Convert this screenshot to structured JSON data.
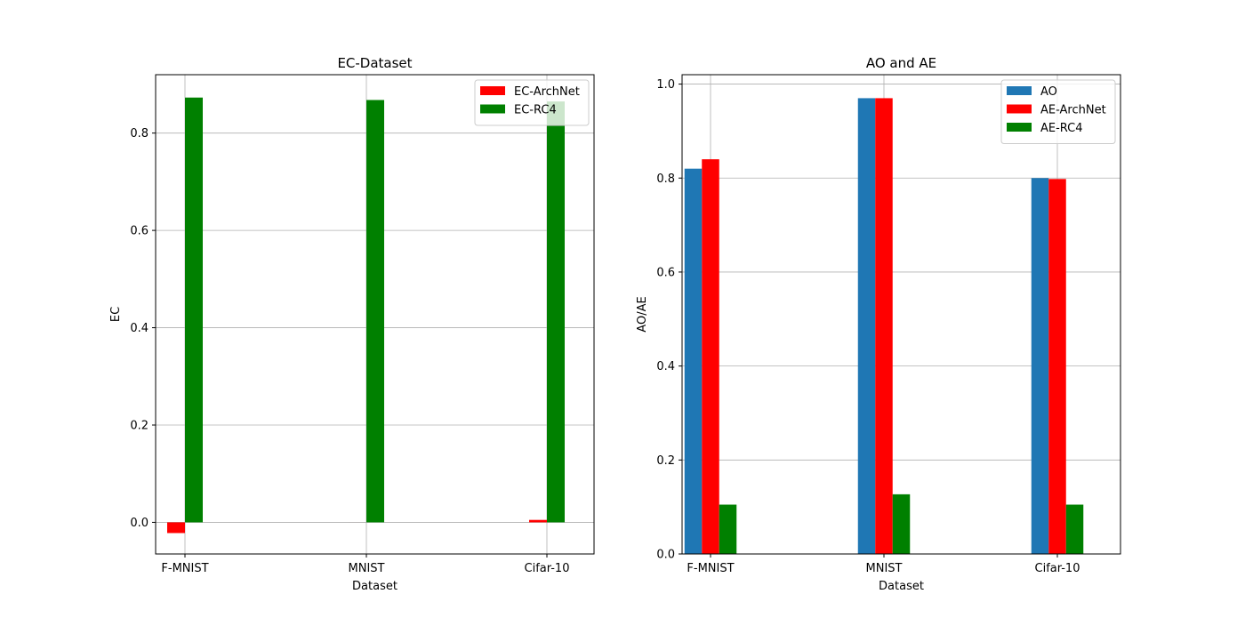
{
  "chart_data": [
    {
      "type": "bar",
      "title": "EC-Dataset",
      "xlabel": "Dataset",
      "ylabel": "EC",
      "categories": [
        "F-MNIST",
        "MNIST",
        "Cifar-10"
      ],
      "ylim": [
        -0.065,
        0.92
      ],
      "yticks": [
        "0.0",
        "0.2",
        "0.4",
        "0.6",
        "0.8"
      ],
      "grid": true,
      "legend_position": "upper right",
      "series": [
        {
          "name": "EC-ArchNet",
          "color": "#ff0000",
          "values": [
            -0.022,
            0.0,
            0.005
          ]
        },
        {
          "name": "EC-RC4",
          "color": "#008000",
          "values": [
            0.873,
            0.868,
            0.865
          ]
        }
      ]
    },
    {
      "type": "bar",
      "title": "AO and AE",
      "xlabel": "Dataset",
      "ylabel": "AO/AE",
      "categories": [
        "F-MNIST",
        "MNIST",
        "Cifar-10"
      ],
      "ylim": [
        0.0,
        1.02
      ],
      "yticks": [
        "0.0",
        "0.2",
        "0.4",
        "0.6",
        "0.8",
        "1.0"
      ],
      "grid": true,
      "legend_position": "upper right",
      "series": [
        {
          "name": "AO",
          "color": "#1f77b4",
          "values": [
            0.82,
            0.97,
            0.8
          ]
        },
        {
          "name": "AE-ArchNet",
          "color": "#ff0000",
          "values": [
            0.84,
            0.97,
            0.798
          ]
        },
        {
          "name": "AE-RC4",
          "color": "#008000",
          "values": [
            0.105,
            0.127,
            0.105
          ]
        }
      ]
    }
  ]
}
